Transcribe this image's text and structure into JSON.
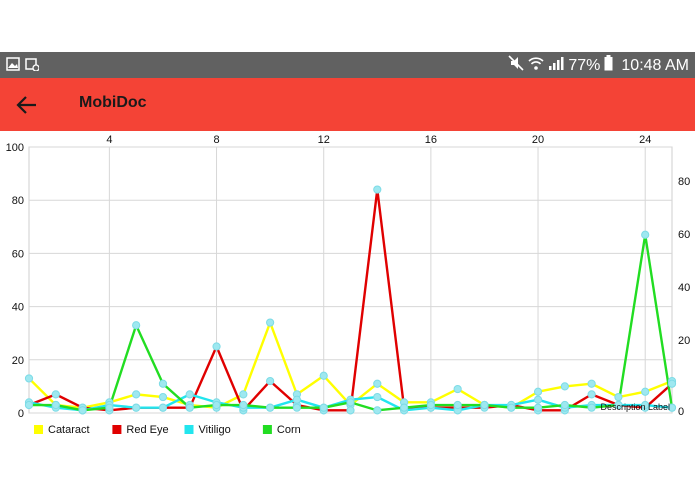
{
  "status_bar": {
    "battery_text": "77%",
    "time": "10:48 AM",
    "icons": [
      "image-icon",
      "calendar-sync-icon",
      "mute-icon",
      "wifi-icon",
      "signal-icon",
      "battery-icon"
    ]
  },
  "app_bar": {
    "title": "MobiDoc",
    "back_icon": "arrow-back-icon",
    "color": "#f44336"
  },
  "chart_data": {
    "type": "line",
    "x": [
      1,
      2,
      3,
      4,
      5,
      6,
      7,
      8,
      9,
      10,
      11,
      12,
      13,
      14,
      15,
      16,
      17,
      18,
      19,
      20,
      21,
      22,
      23,
      24,
      25
    ],
    "x_ticks": [
      "4",
      "8",
      "12",
      "16",
      "20",
      "24"
    ],
    "y_left_ticks": [
      "0",
      "20",
      "40",
      "60",
      "80",
      "100"
    ],
    "y_right_ticks": [
      "20",
      "40",
      "60",
      "80"
    ],
    "ylim_left": [
      0,
      100
    ],
    "grid": true,
    "legend_position": "bottom-left",
    "description": "Description Label",
    "series": [
      {
        "name": "Cataract",
        "color": "#ffff00",
        "values": [
          13,
          3,
          2,
          4,
          7,
          6,
          3,
          2,
          7,
          34,
          7,
          14,
          3,
          11,
          4,
          4,
          9,
          3,
          2,
          8,
          10,
          11,
          6,
          8,
          12
        ]
      },
      {
        "name": "Red Eye",
        "color": "#e00000",
        "values": [
          3,
          7,
          2,
          1,
          2,
          2,
          2,
          25,
          1,
          12,
          3,
          1,
          1,
          84,
          2,
          2,
          2,
          2,
          3,
          1,
          1,
          7,
          3,
          2,
          11
        ]
      },
      {
        "name": "Vitiligo",
        "color": "#22e5ee",
        "values": [
          4,
          2,
          1,
          3,
          2,
          2,
          7,
          4,
          2,
          2,
          5,
          2,
          5,
          6,
          1,
          2,
          1,
          3,
          3,
          5,
          2,
          3,
          3,
          3,
          2
        ]
      },
      {
        "name": "Corn",
        "color": "#22dd22",
        "values": [
          3,
          3,
          1,
          2,
          33,
          11,
          2,
          3,
          3,
          2,
          2,
          2,
          4,
          1,
          2,
          3,
          3,
          3,
          2,
          2,
          3,
          2,
          3,
          67,
          2
        ]
      }
    ]
  }
}
